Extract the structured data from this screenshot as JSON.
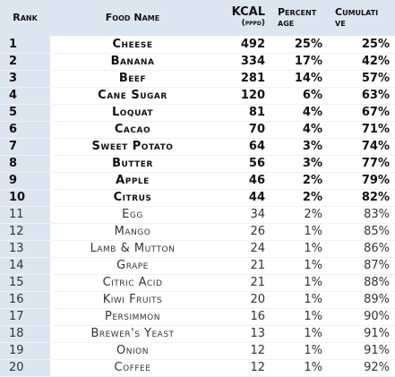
{
  "table": {
    "header": {
      "rank": "Rank",
      "food": "Food Name",
      "kcal": "KCAL",
      "kcal_unit": "(pppd)",
      "percent": [
        "Percent",
        "age"
      ],
      "cumulative": [
        "Cumulati",
        "ve"
      ]
    },
    "rows": [
      [
        1,
        "Cheese",
        492,
        "25%",
        "25%"
      ],
      [
        2,
        "Banana",
        334,
        "17%",
        "42%"
      ],
      [
        3,
        "Beef",
        281,
        "14%",
        "57%"
      ],
      [
        4,
        "Cane Sugar",
        120,
        "6%",
        "63%"
      ],
      [
        5,
        "Loquat",
        81,
        "4%",
        "67%"
      ],
      [
        6,
        "Cacao",
        70,
        "4%",
        "71%"
      ],
      [
        7,
        "Sweet Potato",
        64,
        "3%",
        "74%"
      ],
      [
        8,
        "Butter",
        56,
        "3%",
        "77%"
      ],
      [
        9,
        "Apple",
        46,
        "2%",
        "79%"
      ],
      [
        10,
        "Citrus",
        44,
        "2%",
        "82%"
      ],
      [
        11,
        "Egg",
        34,
        "2%",
        "83%"
      ],
      [
        12,
        "Mango",
        26,
        "1%",
        "85%"
      ],
      [
        13,
        "Lamb & Mutton",
        24,
        "1%",
        "86%"
      ],
      [
        14,
        "Grape",
        21,
        "1%",
        "87%"
      ],
      [
        15,
        "Citric Acid",
        21,
        "1%",
        "88%"
      ],
      [
        16,
        "Kiwi Fruits",
        20,
        "1%",
        "89%"
      ],
      [
        17,
        "Persimmon",
        16,
        "1%",
        "90%"
      ],
      [
        18,
        "Brewer's Yeast",
        13,
        "1%",
        "91%"
      ],
      [
        19,
        "Onion",
        12,
        "1%",
        "91%"
      ],
      [
        20,
        "Coffee",
        12,
        "1%",
        "92%"
      ]
    ]
  }
}
